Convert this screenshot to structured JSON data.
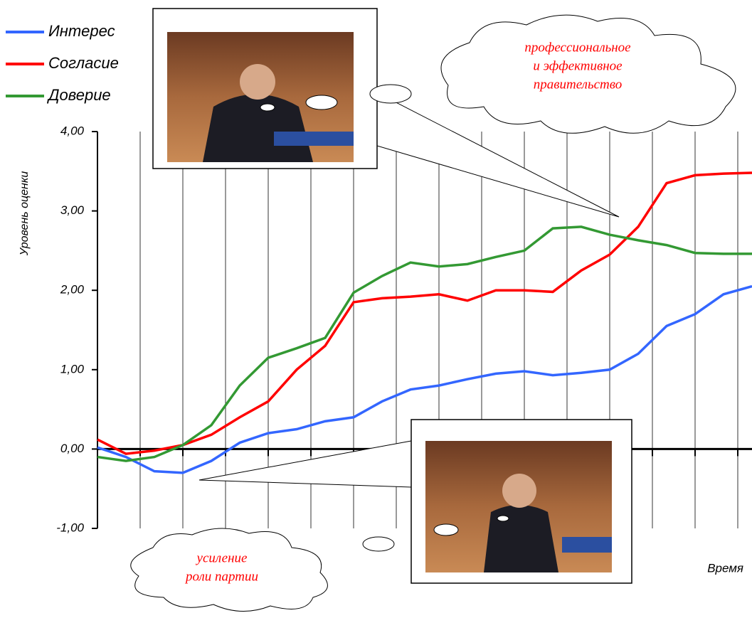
{
  "chart_data": {
    "type": "line",
    "y_label": "Уровень оценки",
    "x_label": "Время",
    "ylim": [
      -1,
      4
    ],
    "yticks": [
      {
        "value": 4,
        "label": "4,00"
      },
      {
        "value": 3,
        "label": "3,00"
      },
      {
        "value": 2,
        "label": "2,00"
      },
      {
        "value": 1,
        "label": "1,00"
      },
      {
        "value": 0,
        "label": "0,00"
      },
      {
        "value": -1,
        "label": "-1,00"
      }
    ],
    "grid": true,
    "legend": "top-left",
    "series": [
      {
        "name": "Интерес",
        "color": "#3366ff",
        "values": [
          0.02,
          -0.1,
          -0.28,
          -0.3,
          -0.15,
          0.08,
          0.2,
          0.25,
          0.35,
          0.4,
          0.6,
          0.75,
          0.8,
          0.88,
          0.95,
          0.98,
          0.93,
          0.96,
          1.0,
          1.2,
          1.55,
          1.7,
          1.95,
          2.05
        ]
      },
      {
        "name": "Согласие",
        "color": "#ff0000",
        "values": [
          0.12,
          -0.06,
          -0.02,
          0.05,
          0.18,
          0.4,
          0.6,
          1.0,
          1.3,
          1.85,
          1.9,
          1.92,
          1.95,
          1.87,
          2.0,
          2.0,
          1.98,
          2.25,
          2.45,
          2.8,
          3.35,
          3.45,
          3.47,
          3.48
        ]
      },
      {
        "name": "Доверие",
        "color": "#339933",
        "values": [
          -0.1,
          -0.15,
          -0.1,
          0.05,
          0.3,
          0.8,
          1.15,
          1.27,
          1.4,
          1.97,
          2.18,
          2.35,
          2.3,
          2.33,
          2.42,
          2.5,
          2.78,
          2.8,
          2.7,
          2.63,
          2.57,
          2.47,
          2.46,
          2.46
        ]
      }
    ],
    "annotations": [
      {
        "lines": [
          "профессиональное",
          "и эффективное",
          "правительство"
        ]
      },
      {
        "lines": [
          "усиление",
          "роли партии"
        ]
      }
    ]
  }
}
